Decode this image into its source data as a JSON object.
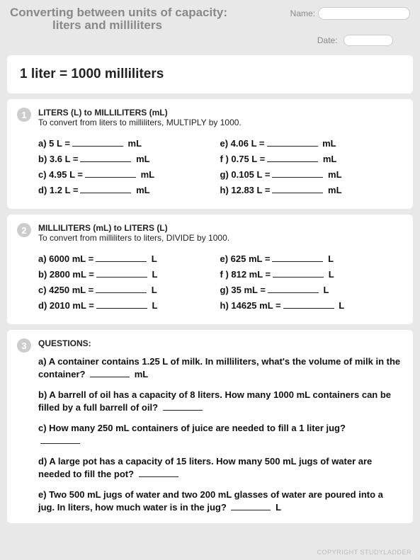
{
  "header": {
    "title_line1": "Converting between units of capacity:",
    "title_line2": "liters and milliliters",
    "name_label": "Name:",
    "date_label": "Date:"
  },
  "rule_card": {
    "text": "1 liter = 1000 milliliters"
  },
  "section1": {
    "num": "1",
    "title": "LITERS (L) to MILLILITERS (mL)",
    "subtitle": "To convert from liters to milliliters, MULTIPLY by 1000.",
    "left": [
      {
        "label": "a)",
        "val": "5 L =",
        "unit": "mL"
      },
      {
        "label": "b)",
        "val": "3.6 L =",
        "unit": "mL"
      },
      {
        "label": "c)",
        "val": "4.95 L =",
        "unit": "mL"
      },
      {
        "label": "d)",
        "val": "1.2 L =",
        "unit": "mL"
      }
    ],
    "right": [
      {
        "label": "e)",
        "val": "4.06 L =",
        "unit": "mL"
      },
      {
        "label": "f )",
        "val": "0.75 L =",
        "unit": "mL"
      },
      {
        "label": "g)",
        "val": "0.105 L =",
        "unit": "mL"
      },
      {
        "label": "h)",
        "val": "12.83 L =",
        "unit": "mL"
      }
    ]
  },
  "section2": {
    "num": "2",
    "title": "MILLILITERS (mL) to LITERS (L)",
    "subtitle": "To convert from milliliters to liters, DIVIDE by 1000.",
    "left": [
      {
        "label": "a)",
        "val": "6000 mL =",
        "unit": "L"
      },
      {
        "label": "b)",
        "val": "2800 mL =",
        "unit": "L"
      },
      {
        "label": "c)",
        "val": "4250 mL =",
        "unit": "L"
      },
      {
        "label": "d)",
        "val": "2010 mL =",
        "unit": "L"
      }
    ],
    "right": [
      {
        "label": "e)",
        "val": "625 mL =",
        "unit": "L"
      },
      {
        "label": "f )",
        "val": "812 mL =",
        "unit": "L"
      },
      {
        "label": "g)",
        "val": "35 mL  =",
        "unit": "L"
      },
      {
        "label": "h)",
        "val": "14625 mL =",
        "unit": "L"
      }
    ]
  },
  "section3": {
    "num": "3",
    "title": "QUESTIONS:",
    "qa_pre": "a) A container contains 1.25 L of milk. In milliliters, what's the volume of milk in the container?",
    "qa_post": "mL",
    "qb_pre": "b) A barrell of oil has a capacity of 8 liters. How many 1000 mL containers can be filled by a full barrell of oil?",
    "qc": "c) How many 250 mL containers of juice are needed to fill a 1 liter jug?",
    "qd_pre": "d) A large pot has a capacity of 15 liters. How many 500 mL jugs of water are needed to fill the pot?",
    "qe_pre": "e) Two 500 mL jugs of water and two 200 mL glasses of water are poured into a jug. In liters, how much water is in the jug?",
    "qe_post": "L"
  },
  "footer": "COPYRIGHT STUDYLADDER"
}
